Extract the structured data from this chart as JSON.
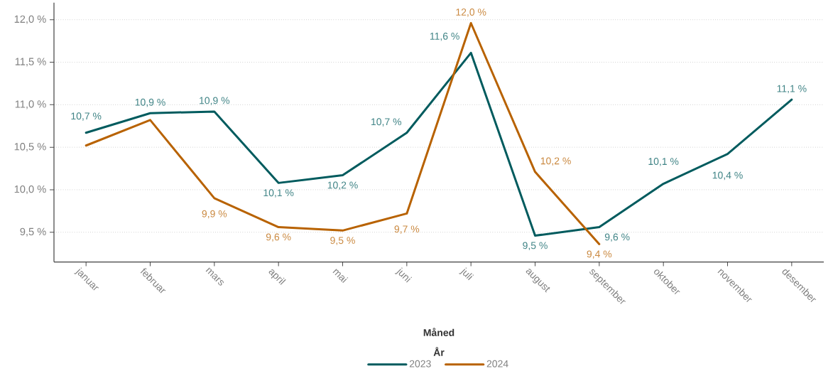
{
  "chart_data": {
    "type": "line",
    "xlabel": "Måned",
    "legend_title": "År",
    "categories": [
      "januar",
      "februar",
      "mars",
      "april",
      "mai",
      "juni",
      "juli",
      "august",
      "september",
      "oktober",
      "november",
      "desember"
    ],
    "series": [
      {
        "name": "2023",
        "color": "#005b5e",
        "values": [
          10.67,
          10.9,
          10.92,
          10.08,
          10.17,
          10.67,
          11.61,
          9.46,
          9.56,
          10.07,
          10.42,
          11.06
        ],
        "value_labels": [
          "10,7 %",
          "10,9 %",
          "10,9 %",
          "10,1 %",
          "10,2 %",
          "10,7 %",
          "11,6 %",
          "9,5 %",
          "9,6 %",
          "10,1 %",
          "10,4 %",
          "11,1 %"
        ]
      },
      {
        "name": "2024",
        "color": "#b86200",
        "values": [
          10.52,
          10.82,
          9.9,
          9.56,
          9.52,
          9.72,
          11.96,
          10.21,
          9.36,
          null,
          null,
          null
        ],
        "value_labels": [
          null,
          null,
          "9,9 %",
          "9,6 %",
          "9,5 %",
          "9,7 %",
          "12,0 %",
          "10,2 %",
          "9,4 %",
          null,
          null,
          null
        ]
      }
    ],
    "ylim": [
      9.15,
      12.2
    ],
    "yticks": [
      {
        "value": 9.5,
        "label": "9,5 %"
      },
      {
        "value": 10,
        "label": "10,0 %"
      },
      {
        "value": 10.5,
        "label": "10,5 %"
      },
      {
        "value": 11,
        "label": "11,0 %"
      },
      {
        "value": 11.5,
        "label": "11,5 %"
      },
      {
        "value": 12,
        "label": "12,0 %"
      }
    ],
    "grid": "y",
    "legend": "bottom",
    "marker": "none",
    "line_style": "solid"
  }
}
